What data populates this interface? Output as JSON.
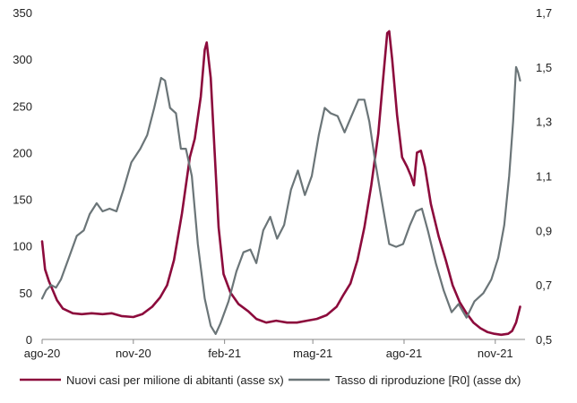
{
  "chart_data": {
    "type": "line",
    "title": "",
    "xlabel": "",
    "x_ticks": [
      "ago-20",
      "nov-20",
      "feb-21",
      "mag-21",
      "ago-21",
      "nov-21"
    ],
    "x_tick_dates": [
      "2020-08-01",
      "2020-11-01",
      "2021-02-01",
      "2021-05-01",
      "2021-08-01",
      "2021-11-01"
    ],
    "x_range": [
      "2020-08-01",
      "2021-12-01"
    ],
    "y_left": {
      "range": [
        0,
        350
      ],
      "ticks": [
        "0",
        "50",
        "100",
        "150",
        "200",
        "250",
        "300",
        "350"
      ]
    },
    "y_right": {
      "range": [
        0.5,
        1.7
      ],
      "ticks": [
        "0,5",
        "0,7",
        "0,9",
        "1,1",
        "1,3",
        "1,5",
        "1,7"
      ]
    },
    "grid": false,
    "legend_position": "bottom",
    "series": [
      {
        "name": "Nuovi casi per milione di abitanti (asse sx)",
        "axis": "left",
        "color": "#8c0b3c",
        "points": [
          [
            "2020-08-01",
            105
          ],
          [
            "2020-08-04",
            75
          ],
          [
            "2020-08-08",
            62
          ],
          [
            "2020-08-12",
            52
          ],
          [
            "2020-08-16",
            42
          ],
          [
            "2020-08-22",
            33
          ],
          [
            "2020-09-01",
            28
          ],
          [
            "2020-09-10",
            27
          ],
          [
            "2020-09-20",
            28
          ],
          [
            "2020-10-01",
            27
          ],
          [
            "2020-10-10",
            28
          ],
          [
            "2020-10-20",
            25
          ],
          [
            "2020-11-01",
            24
          ],
          [
            "2020-11-10",
            27
          ],
          [
            "2020-11-20",
            35
          ],
          [
            "2020-11-28",
            45
          ],
          [
            "2020-12-05",
            58
          ],
          [
            "2020-12-12",
            85
          ],
          [
            "2020-12-20",
            135
          ],
          [
            "2020-12-28",
            195
          ],
          [
            "2021-01-02",
            215
          ],
          [
            "2021-01-08",
            260
          ],
          [
            "2021-01-12",
            310
          ],
          [
            "2021-01-14",
            318
          ],
          [
            "2021-01-18",
            280
          ],
          [
            "2021-01-22",
            200
          ],
          [
            "2021-01-26",
            120
          ],
          [
            "2021-01-31",
            70
          ],
          [
            "2021-02-07",
            50
          ],
          [
            "2021-02-15",
            38
          ],
          [
            "2021-02-25",
            30
          ],
          [
            "2021-03-05",
            22
          ],
          [
            "2021-03-15",
            18
          ],
          [
            "2021-03-25",
            20
          ],
          [
            "2021-04-05",
            18
          ],
          [
            "2021-04-15",
            18
          ],
          [
            "2021-04-25",
            20
          ],
          [
            "2021-05-05",
            22
          ],
          [
            "2021-05-15",
            26
          ],
          [
            "2021-05-25",
            35
          ],
          [
            "2021-06-01",
            48
          ],
          [
            "2021-06-08",
            60
          ],
          [
            "2021-06-15",
            85
          ],
          [
            "2021-06-22",
            120
          ],
          [
            "2021-06-29",
            165
          ],
          [
            "2021-07-06",
            220
          ],
          [
            "2021-07-11",
            280
          ],
          [
            "2021-07-15",
            328
          ],
          [
            "2021-07-17",
            330
          ],
          [
            "2021-07-20",
            300
          ],
          [
            "2021-07-25",
            240
          ],
          [
            "2021-07-30",
            195
          ],
          [
            "2021-08-04",
            185
          ],
          [
            "2021-08-08",
            175
          ],
          [
            "2021-08-11",
            165
          ],
          [
            "2021-08-14",
            200
          ],
          [
            "2021-08-18",
            202
          ],
          [
            "2021-08-22",
            185
          ],
          [
            "2021-08-28",
            145
          ],
          [
            "2021-09-05",
            110
          ],
          [
            "2021-09-12",
            85
          ],
          [
            "2021-09-19",
            58
          ],
          [
            "2021-09-26",
            40
          ],
          [
            "2021-10-03",
            28
          ],
          [
            "2021-10-10",
            18
          ],
          [
            "2021-10-17",
            12
          ],
          [
            "2021-10-24",
            8
          ],
          [
            "2021-10-31",
            6
          ],
          [
            "2021-11-07",
            5
          ],
          [
            "2021-11-14",
            6
          ],
          [
            "2021-11-18",
            9
          ],
          [
            "2021-11-22",
            18
          ],
          [
            "2021-11-26",
            35
          ]
        ]
      },
      {
        "name": "Tasso di riproduzione [R0] (asse dx)",
        "axis": "right",
        "color": "#6b7578",
        "points": [
          [
            "2020-08-01",
            0.65
          ],
          [
            "2020-08-05",
            0.68
          ],
          [
            "2020-08-10",
            0.7
          ],
          [
            "2020-08-15",
            0.69
          ],
          [
            "2020-08-20",
            0.72
          ],
          [
            "2020-08-28",
            0.8
          ],
          [
            "2020-09-05",
            0.88
          ],
          [
            "2020-09-12",
            0.9
          ],
          [
            "2020-09-18",
            0.96
          ],
          [
            "2020-09-25",
            1.0
          ],
          [
            "2020-10-01",
            0.97
          ],
          [
            "2020-10-08",
            0.98
          ],
          [
            "2020-10-15",
            0.97
          ],
          [
            "2020-10-22",
            1.05
          ],
          [
            "2020-10-30",
            1.15
          ],
          [
            "2020-11-08",
            1.2
          ],
          [
            "2020-11-15",
            1.25
          ],
          [
            "2020-11-22",
            1.35
          ],
          [
            "2020-11-29",
            1.46
          ],
          [
            "2020-12-03",
            1.45
          ],
          [
            "2020-12-08",
            1.35
          ],
          [
            "2020-12-14",
            1.33
          ],
          [
            "2020-12-19",
            1.2
          ],
          [
            "2020-12-24",
            1.2
          ],
          [
            "2020-12-30",
            1.1
          ],
          [
            "2021-01-05",
            0.85
          ],
          [
            "2021-01-12",
            0.65
          ],
          [
            "2021-01-18",
            0.55
          ],
          [
            "2021-01-23",
            0.52
          ],
          [
            "2021-01-28",
            0.56
          ],
          [
            "2021-02-05",
            0.64
          ],
          [
            "2021-02-13",
            0.75
          ],
          [
            "2021-02-20",
            0.82
          ],
          [
            "2021-02-27",
            0.83
          ],
          [
            "2021-03-05",
            0.78
          ],
          [
            "2021-03-12",
            0.9
          ],
          [
            "2021-03-19",
            0.95
          ],
          [
            "2021-03-26",
            0.87
          ],
          [
            "2021-04-02",
            0.92
          ],
          [
            "2021-04-09",
            1.05
          ],
          [
            "2021-04-16",
            1.12
          ],
          [
            "2021-04-23",
            1.03
          ],
          [
            "2021-04-30",
            1.1
          ],
          [
            "2021-05-07",
            1.25
          ],
          [
            "2021-05-13",
            1.35
          ],
          [
            "2021-05-19",
            1.33
          ],
          [
            "2021-05-26",
            1.32
          ],
          [
            "2021-06-02",
            1.26
          ],
          [
            "2021-06-09",
            1.32
          ],
          [
            "2021-06-16",
            1.38
          ],
          [
            "2021-06-22",
            1.38
          ],
          [
            "2021-06-27",
            1.3
          ],
          [
            "2021-07-03",
            1.15
          ],
          [
            "2021-07-10",
            1.0
          ],
          [
            "2021-07-17",
            0.85
          ],
          [
            "2021-07-24",
            0.84
          ],
          [
            "2021-07-31",
            0.85
          ],
          [
            "2021-08-07",
            0.92
          ],
          [
            "2021-08-13",
            0.97
          ],
          [
            "2021-08-19",
            0.98
          ],
          [
            "2021-08-25",
            0.9
          ],
          [
            "2021-09-02",
            0.78
          ],
          [
            "2021-09-10",
            0.68
          ],
          [
            "2021-09-18",
            0.6
          ],
          [
            "2021-09-25",
            0.63
          ],
          [
            "2021-10-03",
            0.58
          ],
          [
            "2021-10-11",
            0.64
          ],
          [
            "2021-10-20",
            0.67
          ],
          [
            "2021-10-28",
            0.72
          ],
          [
            "2021-11-04",
            0.8
          ],
          [
            "2021-11-10",
            0.92
          ],
          [
            "2021-11-15",
            1.1
          ],
          [
            "2021-11-19",
            1.3
          ],
          [
            "2021-11-22",
            1.5
          ],
          [
            "2021-11-24",
            1.48
          ],
          [
            "2021-11-26",
            1.45
          ]
        ]
      }
    ]
  }
}
